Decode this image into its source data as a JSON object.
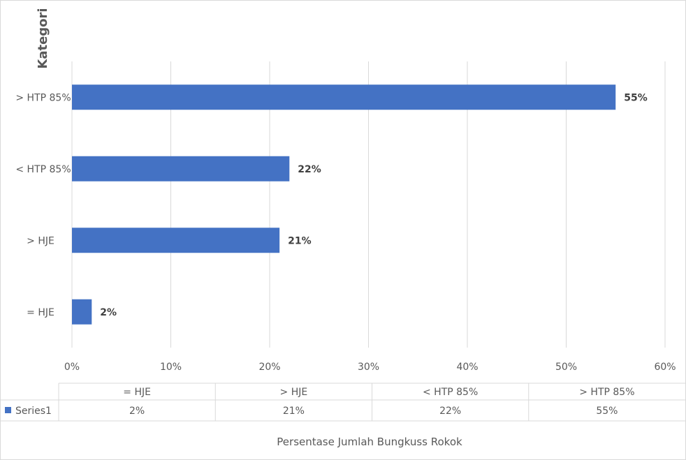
{
  "chart_data": {
    "type": "bar",
    "orientation": "horizontal",
    "title": "",
    "ylabel": "Kategori",
    "xlabel": "Persentase Jumlah Bungkuss Rokok",
    "categories": [
      "= HJE",
      "> HJE",
      "< HTP 85%",
      "> HTP 85%"
    ],
    "series": [
      {
        "name": "Series1",
        "values": [
          0.02,
          0.21,
          0.22,
          0.55
        ],
        "color": "#4472c4"
      }
    ],
    "data_labels": [
      "2%",
      "21%",
      "22%",
      "55%"
    ],
    "xlim": [
      0,
      0.6
    ],
    "xticks": [
      0,
      0.1,
      0.2,
      0.3,
      0.4,
      0.5,
      0.6
    ],
    "xtick_labels": [
      "0%",
      "10%",
      "20%",
      "30%",
      "40%",
      "50%",
      "60%"
    ],
    "grid": true,
    "data_table": {
      "show": true,
      "series_label": "Series1",
      "columns": [
        "= HJE",
        "> HJE",
        "< HTP 85%",
        "> HTP 85%"
      ],
      "values": [
        "2%",
        "21%",
        "22%",
        "55%"
      ]
    }
  }
}
